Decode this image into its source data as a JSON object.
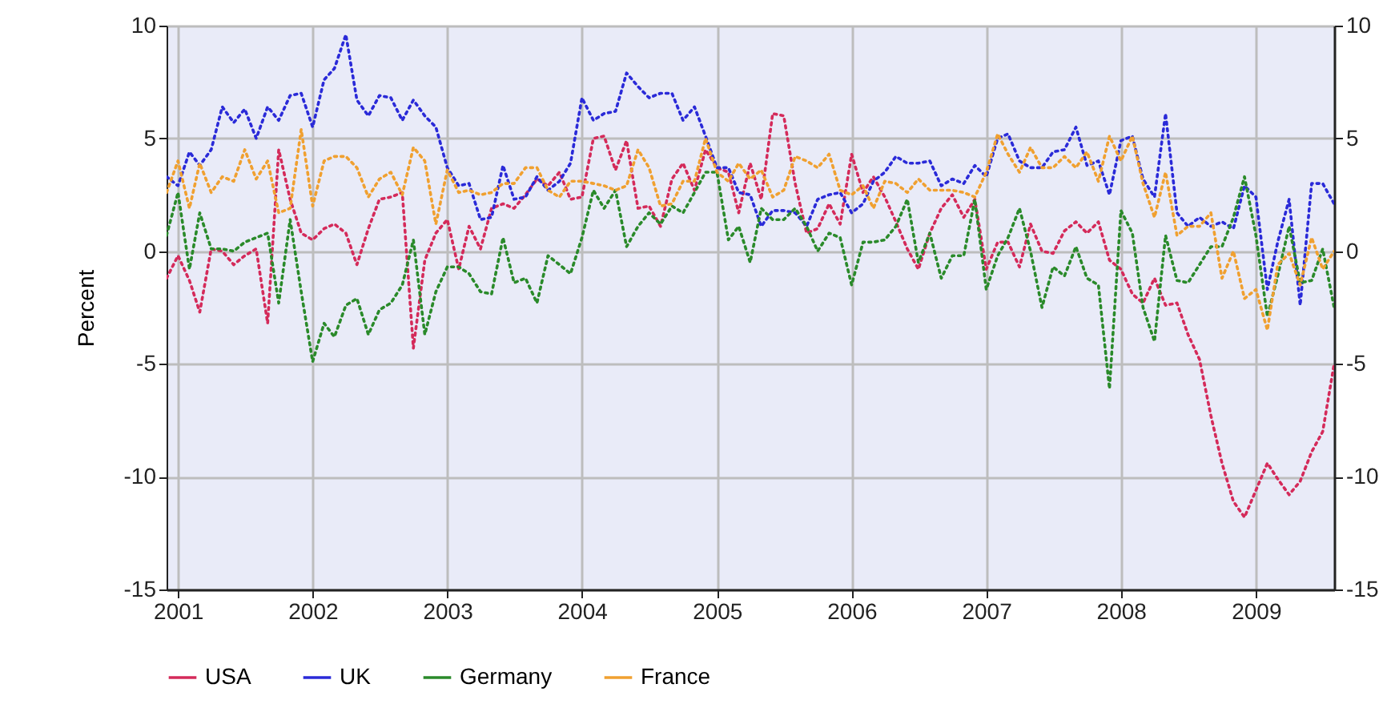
{
  "chart_data": {
    "type": "line",
    "ylabel": "Percent",
    "x": [
      "2000-12",
      "2001-01",
      "2001-02",
      "2001-03",
      "2001-04",
      "2001-05",
      "2001-06",
      "2001-07",
      "2001-08",
      "2001-09",
      "2001-10",
      "2001-11",
      "2001-12",
      "2002-01",
      "2002-02",
      "2002-03",
      "2002-04",
      "2002-05",
      "2002-06",
      "2002-07",
      "2002-08",
      "2002-09",
      "2002-10",
      "2002-11",
      "2002-12",
      "2003-01",
      "2003-02",
      "2003-03",
      "2003-04",
      "2003-05",
      "2003-06",
      "2003-07",
      "2003-08",
      "2003-09",
      "2003-10",
      "2003-11",
      "2003-12",
      "2004-01",
      "2004-02",
      "2004-03",
      "2004-04",
      "2004-05",
      "2004-06",
      "2004-07",
      "2004-08",
      "2004-09",
      "2004-10",
      "2004-11",
      "2004-12",
      "2005-01",
      "2005-02",
      "2005-03",
      "2005-04",
      "2005-05",
      "2005-06",
      "2005-07",
      "2005-08",
      "2005-09",
      "2005-10",
      "2005-11",
      "2005-12",
      "2006-01",
      "2006-02",
      "2006-03",
      "2006-04",
      "2006-05",
      "2006-06",
      "2006-07",
      "2006-08",
      "2006-09",
      "2006-10",
      "2006-11",
      "2006-12",
      "2007-01",
      "2007-02",
      "2007-03",
      "2007-04",
      "2007-05",
      "2007-06",
      "2007-07",
      "2007-08",
      "2007-09",
      "2007-10",
      "2007-11",
      "2007-12",
      "2008-01",
      "2008-02",
      "2008-03",
      "2008-04",
      "2008-05",
      "2008-06",
      "2008-07",
      "2008-08",
      "2008-09",
      "2008-10",
      "2008-11",
      "2008-12",
      "2009-01",
      "2009-02",
      "2009-03",
      "2009-04",
      "2009-05",
      "2009-06",
      "2009-07",
      "2009-08"
    ],
    "series": [
      {
        "name": "USA",
        "color": "#d42a5a",
        "values": [
          -1.2,
          -0.2,
          -1.3,
          -2.7,
          0.1,
          0,
          -0.6,
          -0.2,
          0.1,
          -3.2,
          4.5,
          2.3,
          0.8,
          0.5,
          1.0,
          1.2,
          0.8,
          -0.6,
          1.0,
          2.3,
          2.4,
          2.6,
          -4.3,
          -0.4,
          0.8,
          1.4,
          -0.8,
          1.1,
          0.1,
          1.9,
          2.1,
          1.9,
          2.5,
          3.2,
          2.9,
          3.5,
          2.3,
          2.4,
          5.0,
          5.1,
          3.6,
          4.9,
          1.9,
          2.0,
          1.1,
          3.2,
          3.9,
          2.7,
          4.5,
          3.7,
          3.5,
          1.7,
          3.9,
          2.3,
          6.1,
          6.0,
          3.0,
          0.8,
          1.0,
          2.1,
          1.2,
          4.3,
          2.6,
          3.3,
          2.4,
          1.3,
          0.1,
          -0.8,
          0.8,
          1.9,
          2.5,
          1.5,
          2.3,
          -0.8,
          0.4,
          0.4,
          -0.7,
          1.2,
          0,
          -0.1,
          0.9,
          1.3,
          0.8,
          1.3,
          -0.4,
          -0.8,
          -1.9,
          -2.3,
          -1.2,
          -2.4,
          -2.3,
          -3.7,
          -4.8,
          -7.3,
          -9.4,
          -11.1,
          -11.8,
          -10.6,
          -9.4,
          -10.1,
          -10.8,
          -10.2,
          -8.9,
          -8.0,
          -5.0
        ]
      },
      {
        "name": "UK",
        "color": "#2a2ad8",
        "values": [
          3.3,
          2.9,
          4.4,
          3.8,
          4.5,
          6.4,
          5.7,
          6.3,
          5.0,
          6.4,
          5.8,
          6.9,
          7.0,
          5.5,
          7.6,
          8.1,
          9.6,
          6.7,
          6.0,
          6.9,
          6.8,
          5.8,
          6.7,
          6.0,
          5.5,
          3.7,
          2.9,
          3.0,
          1.4,
          1.5,
          3.8,
          2.3,
          2.4,
          3.3,
          2.7,
          3.1,
          3.9,
          6.8,
          5.8,
          6.1,
          6.2,
          7.9,
          7.3,
          6.8,
          7.0,
          7.0,
          5.8,
          6.4,
          5.1,
          3.7,
          3.7,
          2.6,
          2.5,
          1.1,
          1.8,
          1.8,
          1.7,
          1.1,
          2.3,
          2.5,
          2.6,
          1.7,
          2.1,
          3.1,
          3.5,
          4.2,
          3.9,
          3.9,
          4.0,
          2.9,
          3.2,
          3.0,
          3.8,
          3.3,
          5.0,
          5.2,
          4.0,
          3.7,
          3.7,
          4.4,
          4.5,
          5.5,
          3.8,
          4.0,
          2.5,
          4.9,
          5.1,
          3.2,
          2.4,
          6.1,
          1.7,
          1.1,
          1.5,
          1.1,
          1.3,
          1.0,
          2.9,
          2.4,
          -1.7,
          0.4,
          2.3,
          -2.4,
          3.0,
          3.0,
          2.1
        ]
      },
      {
        "name": "Germany",
        "color": "#2a8a2a",
        "values": [
          0.7,
          2.6,
          -0.8,
          1.7,
          0.1,
          0.1,
          0,
          0.4,
          0.6,
          0.8,
          -2.3,
          1.4,
          -1.8,
          -4.9,
          -3.2,
          -3.8,
          -2.4,
          -2.1,
          -3.7,
          -2.6,
          -2.3,
          -1.5,
          0.5,
          -3.7,
          -1.8,
          -0.7,
          -0.7,
          -1.0,
          -1.8,
          -1.9,
          0.6,
          -1.4,
          -1.2,
          -2.3,
          -0.2,
          -0.6,
          -1.0,
          0.6,
          2.7,
          1.9,
          2.7,
          0.2,
          1.1,
          1.7,
          1.2,
          2.0,
          1.7,
          2.6,
          3.5,
          3.5,
          0.5,
          1.1,
          -0.5,
          1.9,
          1.4,
          1.4,
          1.9,
          1.1,
          0,
          0.8,
          0.6,
          -1.5,
          0.4,
          0.4,
          0.5,
          1.1,
          2.3,
          -0.5,
          0.8,
          -1.2,
          -0.2,
          -0.2,
          2.3,
          -1.7,
          -0.2,
          0.6,
          1.9,
          0,
          -2.5,
          -0.7,
          -1.1,
          0.2,
          -1.2,
          -1.5,
          -6.1,
          1.8,
          0.8,
          -2.5,
          -4.0,
          0.7,
          -1.3,
          -1.4,
          -0.6,
          0.2,
          0.2,
          1.5,
          3.3,
          0.7,
          -2.9,
          -1.1,
          1.1,
          -1.4,
          -1.3,
          0.1,
          -2.5
        ]
      },
      {
        "name": "France",
        "color": "#f0a030",
        "values": [
          2.6,
          4.0,
          1.9,
          3.9,
          2.6,
          3.3,
          3.1,
          4.5,
          3.2,
          4.0,
          1.7,
          1.9,
          5.4,
          2.0,
          4.0,
          4.2,
          4.2,
          3.7,
          2.4,
          3.2,
          3.5,
          2.5,
          4.6,
          4.0,
          1.2,
          3.6,
          2.6,
          2.7,
          2.5,
          2.6,
          3.0,
          3.0,
          3.7,
          3.7,
          2.7,
          2.4,
          3.1,
          3.1,
          3.0,
          2.9,
          2.7,
          2.9,
          4.5,
          3.7,
          2.0,
          2.1,
          3.1,
          3.1,
          5.0,
          3.5,
          3.1,
          3.9,
          3.2,
          3.6,
          2.4,
          2.7,
          4.2,
          4.0,
          3.7,
          4.3,
          2.7,
          2.5,
          2.9,
          1.9,
          3.1,
          3.0,
          2.6,
          3.2,
          2.7,
          2.7,
          2.7,
          2.6,
          2.4,
          3.5,
          5.2,
          4.3,
          3.5,
          4.6,
          3.7,
          3.7,
          4.2,
          3.7,
          4.4,
          3.1,
          5.1,
          4.0,
          5.1,
          3.0,
          1.5,
          3.5,
          0.7,
          1.1,
          1.1,
          1.7,
          -1.2,
          0,
          -2.1,
          -1.7,
          -3.5,
          -0.6,
          -0.1,
          -1.5,
          0.6,
          -0.8,
          0
        ]
      }
    ],
    "xlim": [
      "2000-12",
      "2009-08"
    ],
    "xticks": [
      "2001",
      "2002",
      "2003",
      "2004",
      "2005",
      "2006",
      "2007",
      "2008",
      "2009"
    ],
    "ylim": [
      -15,
      10
    ],
    "yticks": [
      -15,
      -10,
      -5,
      0,
      5,
      10
    ],
    "y2lim": [
      -15,
      10
    ],
    "y2ticks": [
      -15,
      -10,
      -5,
      0,
      5,
      10
    ],
    "grid": true,
    "legend": "bottom",
    "line_style": "dotted"
  }
}
